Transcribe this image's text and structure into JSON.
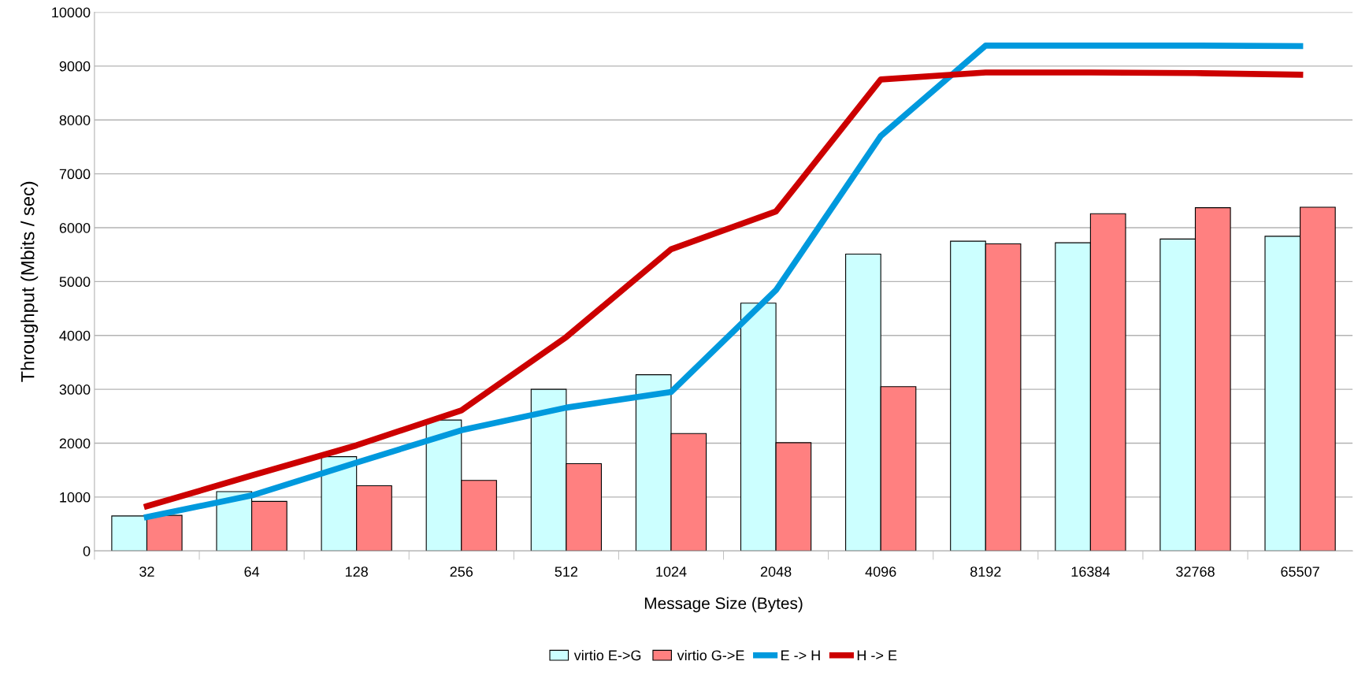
{
  "chart_data": {
    "type": "bar",
    "xlabel": "Message Size (Bytes)",
    "ylabel": "Throughput (Mbits / sec)",
    "categories": [
      "32",
      "64",
      "128",
      "256",
      "512",
      "1024",
      "2048",
      "4096",
      "8192",
      "16384",
      "32768",
      "65507"
    ],
    "series": [
      {
        "name": "virtio E->G",
        "color": "#ccffff",
        "values": [
          650,
          1100,
          1750,
          2430,
          3000,
          3270,
          4600,
          5510,
          5750,
          5720,
          5790,
          5840
        ]
      },
      {
        "name": "virtio G->E",
        "color": "#ff8080",
        "values": [
          660,
          920,
          1210,
          1310,
          1620,
          2180,
          2010,
          3050,
          5700,
          6260,
          6370,
          6380
        ]
      },
      {
        "name": "E -> H",
        "type": "line",
        "color": "#0099dd",
        "values": [
          630,
          1030,
          1640,
          2240,
          2660,
          2950,
          4840,
          7700,
          9380,
          9380,
          9380,
          9370
        ]
      },
      {
        "name": "H -> E",
        "type": "line",
        "color": "#cc0000",
        "values": [
          830,
          1400,
          1960,
          2610,
          3970,
          5600,
          6300,
          8750,
          8880,
          8880,
          8870,
          8840
        ]
      }
    ],
    "ylim": [
      0,
      10000
    ],
    "yticks": [
      0,
      1000,
      2000,
      3000,
      4000,
      5000,
      6000,
      7000,
      8000,
      9000,
      10000
    ],
    "grid": "y",
    "legend": "bottom"
  }
}
